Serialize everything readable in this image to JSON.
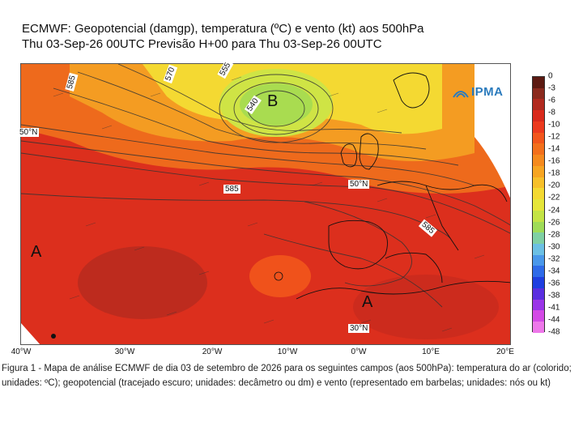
{
  "header": {
    "title_line1": "ECMWF:  Geopotencial (damgp), temperatura (ºC) e vento (kt) aos 500hPa",
    "title_line2": "Thu 03-Sep-26 00UTC Previsão H+00 para Thu 03-Sep-26 00UTC"
  },
  "map": {
    "logo_text": "IPMA",
    "logo_icon": "ipma-logo-icon",
    "pressure_labels": [
      "B",
      "A",
      "A"
    ],
    "isoheight_labels": [
      "585",
      "570",
      "555",
      "540",
      "585",
      "585"
    ],
    "latitude_labels": [
      "50°N",
      "50°N",
      "30°N"
    ],
    "longitude_labels": [
      "40°W",
      "30°W",
      "20°W",
      "10°W",
      "0°W",
      "10°E",
      "20°E"
    ],
    "colors": {
      "warm_dark": "#8b2a1e",
      "warm": "#d92a1c",
      "orange": "#f07a1a",
      "yellow": "#f2e23a",
      "green": "#b7e04a"
    }
  },
  "colorbar": {
    "labels": [
      "0",
      "-3",
      "-6",
      "-8",
      "-10",
      "-12",
      "-14",
      "-16",
      "-18",
      "-20",
      "-22",
      "-24",
      "-26",
      "-28",
      "-30",
      "-32",
      "-34",
      "-36",
      "-38",
      "-41",
      "-44",
      "-48"
    ],
    "colors": [
      "#5c1a12",
      "#8b2a1e",
      "#b12a1f",
      "#d92a1c",
      "#ec3a1e",
      "#f2561c",
      "#f3701c",
      "#f58a1e",
      "#f7a522",
      "#f7c02a",
      "#f4d932",
      "#e6e63a",
      "#c4e445",
      "#9fdc58",
      "#7fd0a4",
      "#6cc0e4",
      "#4a98ea",
      "#2f6be8",
      "#1f3fe0",
      "#5a2fe0",
      "#9a35e8",
      "#d44ae6",
      "#ee78ea"
    ]
  },
  "caption": {
    "text": "Figura 1 - Mapa de análise ECMWF de dia 03 de setembro de 2026 para os seguintes campos (aos 500hPa): temperatura do ar (colorido; unidades: ºC); geopotencial (tracejado escuro; unidades: decâmetro ou dm) e vento (representado em barbelas; unidades: nós ou kt)"
  }
}
